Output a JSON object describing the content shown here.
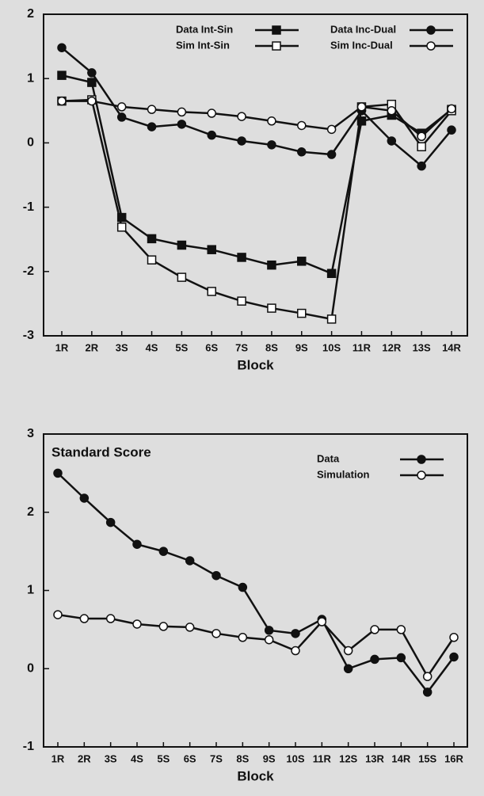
{
  "chart_data": [
    {
      "type": "line",
      "x_label": "Block",
      "categories": [
        "1R",
        "2R",
        "3S",
        "4S",
        "5S",
        "6S",
        "7S",
        "8S",
        "9S",
        "10S",
        "11R",
        "12R",
        "13S",
        "14R"
      ],
      "ylim": [
        -3,
        2
      ],
      "yticks": [
        -3,
        -2,
        -1,
        0,
        1,
        2
      ],
      "legend": "top-right",
      "series": [
        {
          "name": "Data Int-Sin",
          "color": "#111111",
          "marker": "square",
          "filled": true,
          "values": [
            1.05,
            0.94,
            -1.16,
            -1.49,
            -1.59,
            -1.66,
            -1.78,
            -1.9,
            -1.84,
            -2.03,
            0.34,
            0.43,
            0.15,
            0.52
          ]
        },
        {
          "name": "Sim Int-Sin",
          "color": "#111111",
          "marker": "square",
          "filled": false,
          "values": [
            0.65,
            0.67,
            -1.31,
            -1.82,
            -2.09,
            -2.31,
            -2.46,
            -2.57,
            -2.65,
            -2.74,
            0.56,
            0.6,
            -0.06,
            0.5
          ]
        },
        {
          "name": "Data Inc-Dual",
          "color": "#111111",
          "marker": "circle",
          "filled": true,
          "values": [
            1.48,
            1.09,
            0.4,
            0.25,
            0.29,
            0.12,
            0.03,
            -0.03,
            -0.14,
            -0.18,
            0.5,
            0.03,
            -0.36,
            0.2
          ]
        },
        {
          "name": "Sim Inc-Dual",
          "color": "#111111",
          "marker": "circle",
          "filled": false,
          "values": [
            0.65,
            0.65,
            0.56,
            0.52,
            0.48,
            0.46,
            0.41,
            0.34,
            0.27,
            0.21,
            0.56,
            0.5,
            0.1,
            0.53
          ]
        }
      ]
    },
    {
      "type": "line",
      "title": "Standard Score",
      "x_label": "Block",
      "categories": [
        "1R",
        "2R",
        "3S",
        "4S",
        "5S",
        "6S",
        "7S",
        "8S",
        "9S",
        "10S",
        "11R",
        "12S",
        "13R",
        "14R",
        "15S",
        "16R"
      ],
      "ylim": [
        -1,
        3
      ],
      "yticks": [
        -1,
        0,
        1,
        2,
        3
      ],
      "legend": "top-right",
      "series": [
        {
          "name": "Data",
          "color": "#111111",
          "marker": "circle",
          "filled": true,
          "values": [
            2.5,
            2.18,
            1.87,
            1.59,
            1.5,
            1.38,
            1.19,
            1.04,
            0.49,
            0.45,
            0.63,
            0.0,
            0.12,
            0.14,
            -0.3,
            0.15
          ]
        },
        {
          "name": "Simulation",
          "color": "#111111",
          "marker": "circle",
          "filled": false,
          "values": [
            0.69,
            0.64,
            0.64,
            0.57,
            0.54,
            0.53,
            0.45,
            0.4,
            0.37,
            0.23,
            0.6,
            0.23,
            0.5,
            0.5,
            -0.1,
            0.4
          ]
        }
      ]
    }
  ]
}
